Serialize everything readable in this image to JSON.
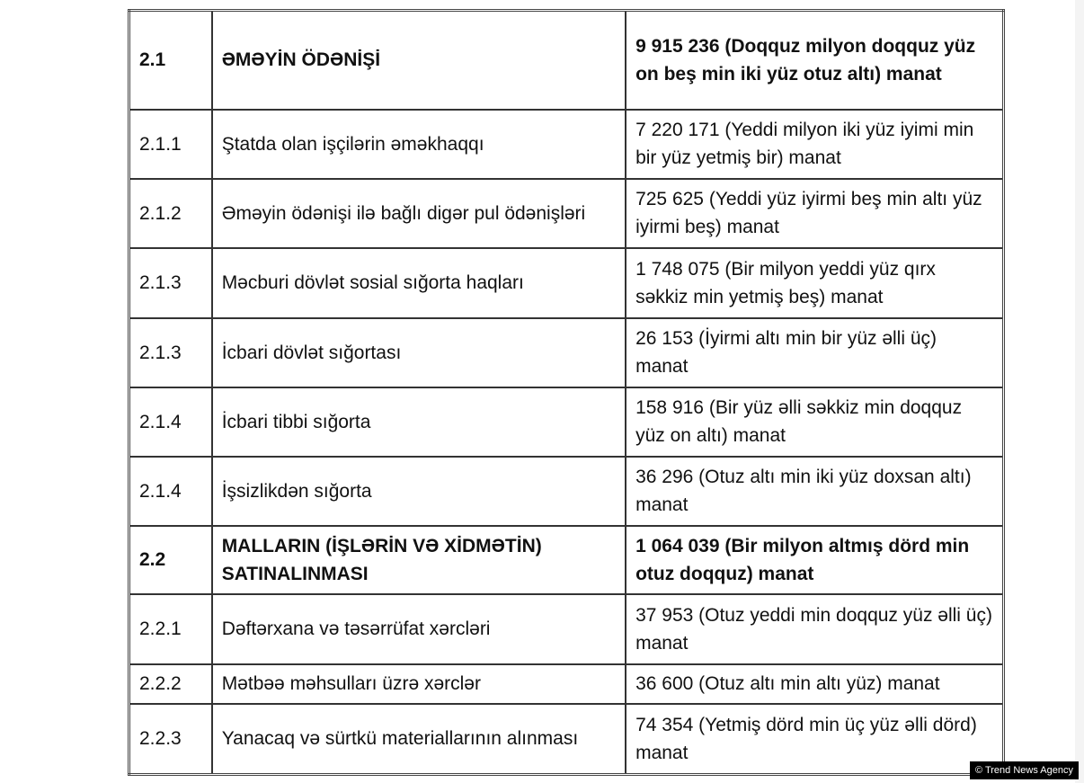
{
  "rows": [
    {
      "code": "2.1",
      "name": "ƏMƏYİN ÖDƏNİŞİ",
      "amount": "9 915 236 (Doqquz milyon doqquz yüz on beş min iki yüz otuz altı) manat",
      "bold": true
    },
    {
      "code": "2.1.1",
      "name": "Ştatda olan işçilərin əməkhaqqı",
      "amount": "7 220 171 (Yeddi milyon iki yüz iyimi min bir yüz yetmiş bir) manat",
      "bold": false
    },
    {
      "code": "2.1.2",
      "name": "Əməyin ödənişi ilə bağlı digər pul ödənişləri",
      "amount": "725 625 (Yeddi yüz iyirmi beş min altı yüz iyirmi beş) manat",
      "bold": false
    },
    {
      "code": "2.1.3",
      "name": "Məcburi dövlət sosial sığorta haqları",
      "amount": "1 748 075 (Bir milyon yeddi yüz qırx səkkiz min yetmiş beş) manat",
      "bold": false
    },
    {
      "code": "2.1.3",
      "name": "İcbari dövlət sığortası",
      "amount": "26 153 (İyirmi altı min bir yüz əlli üç) manat",
      "bold": false
    },
    {
      "code": "2.1.4",
      "name": "İcbari tibbi sığorta",
      "amount": "158 916 (Bir yüz əlli səkkiz min doqquz yüz on altı) manat",
      "bold": false
    },
    {
      "code": "2.1.4",
      "name": "İşsizlikdən sığorta",
      "amount": "36 296 (Otuz altı min iki yüz doxsan altı) manat",
      "bold": false
    },
    {
      "code": "2.2",
      "name": "MALLARIN (İŞLƏRİN VƏ XİDMƏTİN) SATINALINMASI",
      "amount": "1 064 039 (Bir milyon altmış dörd min otuz doqquz) manat",
      "bold": true
    },
    {
      "code": "2.2.1",
      "name": "Dəftərxana və təsərrüfat xərcləri",
      "amount": "37 953 (Otuz yeddi min doqquz yüz əlli üç) manat",
      "bold": false
    },
    {
      "code": "2.2.2",
      "name": "Mətbəə məhsulları üzrə xərclər",
      "amount": "36 600 (Otuz altı min altı yüz) manat",
      "bold": false
    },
    {
      "code": "2.2.3",
      "name": "Yanacaq və sürtkü materiallarının alınması",
      "amount": "74 354 (Yetmiş dörd min üç yüz əlli dörd) manat",
      "bold": false
    }
  ],
  "watermark": "© Trend News Agency"
}
